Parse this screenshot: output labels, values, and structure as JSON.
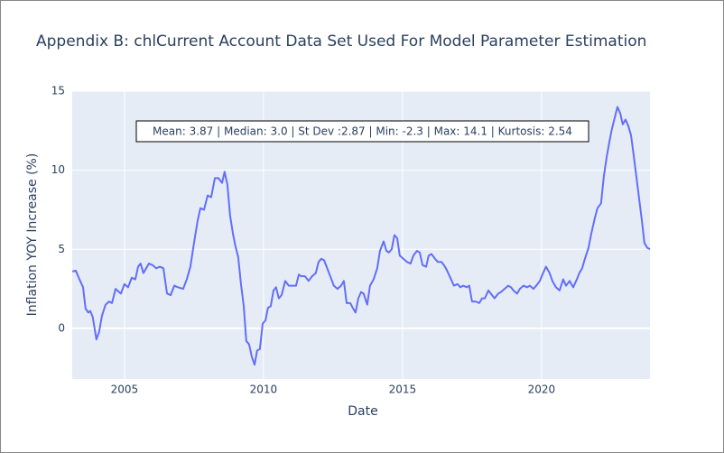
{
  "chart_data": {
    "type": "line",
    "title": "Appendix B: chlCurrent Account Data Set Used For Model Parameter Estimation",
    "x_label": "Date",
    "y_label": "Inflation YOY Increase (%)",
    "annotation": "Mean: 3.87 | Median: 3.0 | St Dev :2.87 | Min: -2.3 | Max: 14.1 | Kurtosis: 2.54",
    "color": "#636efa",
    "grid": true,
    "xlim": [
      2003.12,
      2023.9
    ],
    "xticks": [
      2005,
      2010,
      2015,
      2020
    ],
    "ylim": [
      -3.2,
      15
    ],
    "yticks": [
      0,
      5,
      10,
      15
    ],
    "x": [
      2003.12,
      2003.25,
      2003.38,
      2003.51,
      2003.6,
      2003.7,
      2003.77,
      2003.86,
      2003.99,
      2004.09,
      2004.19,
      2004.32,
      2004.45,
      2004.55,
      2004.68,
      2004.87,
      2005,
      2005.13,
      2005.26,
      2005.39,
      2005.49,
      2005.58,
      2005.68,
      2005.78,
      2005.88,
      2006.01,
      2006.14,
      2006.27,
      2006.4,
      2006.53,
      2006.66,
      2006.79,
      2006.92,
      2007.11,
      2007.24,
      2007.37,
      2007.5,
      2007.63,
      2007.73,
      2007.86,
      2007.99,
      2008.12,
      2008.25,
      2008.38,
      2008.51,
      2008.6,
      2008.7,
      2008.8,
      2008.9,
      2008.99,
      2009.09,
      2009.19,
      2009.29,
      2009.38,
      2009.48,
      2009.58,
      2009.68,
      2009.77,
      2009.87,
      2009.97,
      2010.07,
      2010.16,
      2010.26,
      2010.36,
      2010.45,
      2010.55,
      2010.65,
      2010.78,
      2010.91,
      2011.04,
      2011.17,
      2011.27,
      2011.36,
      2011.49,
      2011.62,
      2011.75,
      2011.88,
      2011.98,
      2012.08,
      2012.18,
      2012.27,
      2012.4,
      2012.53,
      2012.66,
      2012.79,
      2012.89,
      2012.99,
      2013.12,
      2013.21,
      2013.31,
      2013.41,
      2013.51,
      2013.6,
      2013.73,
      2013.83,
      2013.96,
      2014.09,
      2014.19,
      2014.32,
      2014.42,
      2014.51,
      2014.61,
      2014.71,
      2014.81,
      2014.9,
      2015.03,
      2015.16,
      2015.29,
      2015.39,
      2015.52,
      2015.62,
      2015.72,
      2015.85,
      2015.94,
      2016.04,
      2016.17,
      2016.27,
      2016.4,
      2016.49,
      2016.59,
      2016.72,
      2016.85,
      2016.98,
      2017.08,
      2017.18,
      2017.31,
      2017.4,
      2017.5,
      2017.63,
      2017.76,
      2017.86,
      2017.96,
      2018.09,
      2018.22,
      2018.31,
      2018.44,
      2018.54,
      2018.67,
      2018.8,
      2018.9,
      2018.99,
      2019.12,
      2019.22,
      2019.35,
      2019.48,
      2019.58,
      2019.71,
      2019.81,
      2019.94,
      2020.03,
      2020.16,
      2020.29,
      2020.39,
      2020.52,
      2020.65,
      2020.78,
      2020.88,
      2021.01,
      2021.14,
      2021.27,
      2021.36,
      2021.46,
      2021.56,
      2021.69,
      2021.79,
      2021.92,
      2022.01,
      2022.14,
      2022.24,
      2022.34,
      2022.44,
      2022.53,
      2022.63,
      2022.73,
      2022.83,
      2022.92,
      2023.02,
      2023.12,
      2023.22,
      2023.31,
      2023.41,
      2023.51,
      2023.61,
      2023.7,
      2023.8,
      2023.9
    ],
    "values": [
      3.6,
      3.65,
      3.1,
      2.6,
      1.25,
      1.0,
      1.1,
      0.7,
      -0.7,
      -0.2,
      0.8,
      1.5,
      1.7,
      1.6,
      2.5,
      2.2,
      2.8,
      2.6,
      3.2,
      3.1,
      3.9,
      4.1,
      3.5,
      3.8,
      4.1,
      4.0,
      3.8,
      3.9,
      3.8,
      2.2,
      2.1,
      2.7,
      2.6,
      2.5,
      3.1,
      3.9,
      5.4,
      6.8,
      7.6,
      7.5,
      8.4,
      8.3,
      9.5,
      9.5,
      9.2,
      9.9,
      9.1,
      7.1,
      6.0,
      5.2,
      4.5,
      2.8,
      1.4,
      -0.8,
      -1.0,
      -1.8,
      -2.3,
      -1.4,
      -1.3,
      0.3,
      0.5,
      1.3,
      1.4,
      2.4,
      2.6,
      1.9,
      2.1,
      3.0,
      2.7,
      2.7,
      2.7,
      3.4,
      3.3,
      3.3,
      3.0,
      3.3,
      3.5,
      4.2,
      4.4,
      4.3,
      3.9,
      3.3,
      2.7,
      2.5,
      2.7,
      3.0,
      1.6,
      1.6,
      1.3,
      1.0,
      1.9,
      2.3,
      2.2,
      1.5,
      2.7,
      3.1,
      3.8,
      4.9,
      5.5,
      4.9,
      4.8,
      5.0,
      5.9,
      5.7,
      4.6,
      4.4,
      4.2,
      4.1,
      4.6,
      4.9,
      4.8,
      4.0,
      3.9,
      4.6,
      4.7,
      4.4,
      4.2,
      4.2,
      4.0,
      3.7,
      3.2,
      2.7,
      2.8,
      2.6,
      2.7,
      2.6,
      2.7,
      1.7,
      1.7,
      1.6,
      1.9,
      1.9,
      2.4,
      2.1,
      1.9,
      2.2,
      2.3,
      2.5,
      2.7,
      2.6,
      2.4,
      2.2,
      2.5,
      2.7,
      2.6,
      2.7,
      2.5,
      2.7,
      3.0,
      3.4,
      3.9,
      3.5,
      3.0,
      2.6,
      2.4,
      3.1,
      2.7,
      3.0,
      2.6,
      3.1,
      3.5,
      3.8,
      4.4,
      5.1,
      6.0,
      7.0,
      7.6,
      7.9,
      9.6,
      10.8,
      11.8,
      12.6,
      13.3,
      14.0,
      13.6,
      12.9,
      13.2,
      12.8,
      12.2,
      11.0,
      9.6,
      8.2,
      6.8,
      5.4,
      5.1,
      5.0
    ]
  }
}
